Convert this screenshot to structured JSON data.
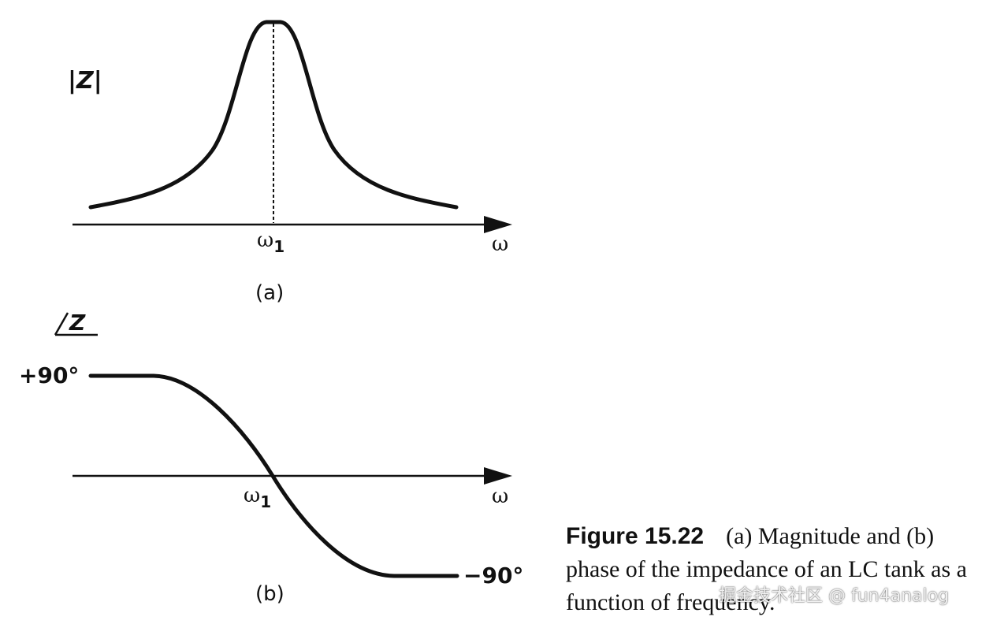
{
  "panel_a": {
    "y_label": "|Z|",
    "peak_label": "ω",
    "peak_sub": "1",
    "x_label": "ω",
    "panel_label": "(a)"
  },
  "panel_b": {
    "y_label": "Z",
    "top_value": "+90°",
    "bottom_value": "−90°",
    "cross_label": "ω",
    "cross_sub": "1",
    "x_label": "ω",
    "panel_label": "(b)"
  },
  "caption": {
    "figure_number": "Figure 15.22",
    "text": "(a) Magnitude and (b) phase of the impedance of an LC tank as a function of frequency."
  },
  "watermark": "掘金技术社区 @ fun4analog"
}
